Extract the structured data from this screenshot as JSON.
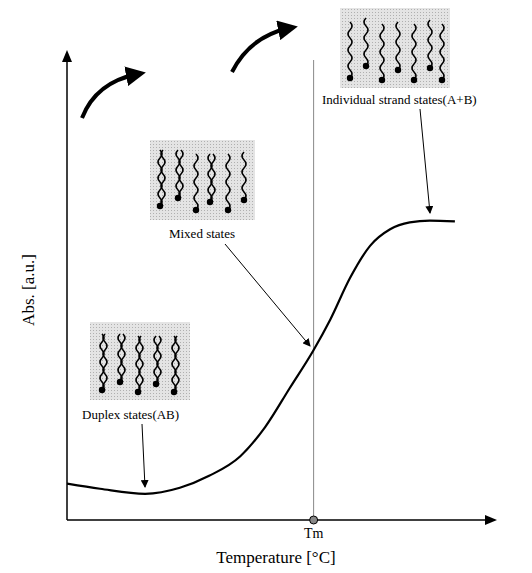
{
  "chart_data": {
    "type": "line",
    "x_label": "Temperature [°C]",
    "y_label": "Abs. [a.u.]",
    "x": [
      0,
      7.9,
      18.7,
      27,
      34,
      41.4,
      47.4,
      53.3,
      58.9,
      63,
      67.7,
      72.5,
      77.3,
      82,
      86.8,
      92.8
    ],
    "values": [
      7.9,
      6.8,
      5.7,
      7,
      9.6,
      13.8,
      20.2,
      28.7,
      36.8,
      43.6,
      52.6,
      59.6,
      63.2,
      64.7,
      65.1,
      64.9
    ],
    "color": "#000000",
    "xlim": [
      0,
      100
    ],
    "ylim": [
      0,
      100
    ],
    "xticks": [
      {
        "value": 59,
        "label": "Tm"
      }
    ],
    "yticks": [],
    "tick_labels": "x",
    "grid": false,
    "annotations": [
      "Duplex states(AB)",
      "Mixed states",
      "Individual strand states(A+B)"
    ]
  }
}
